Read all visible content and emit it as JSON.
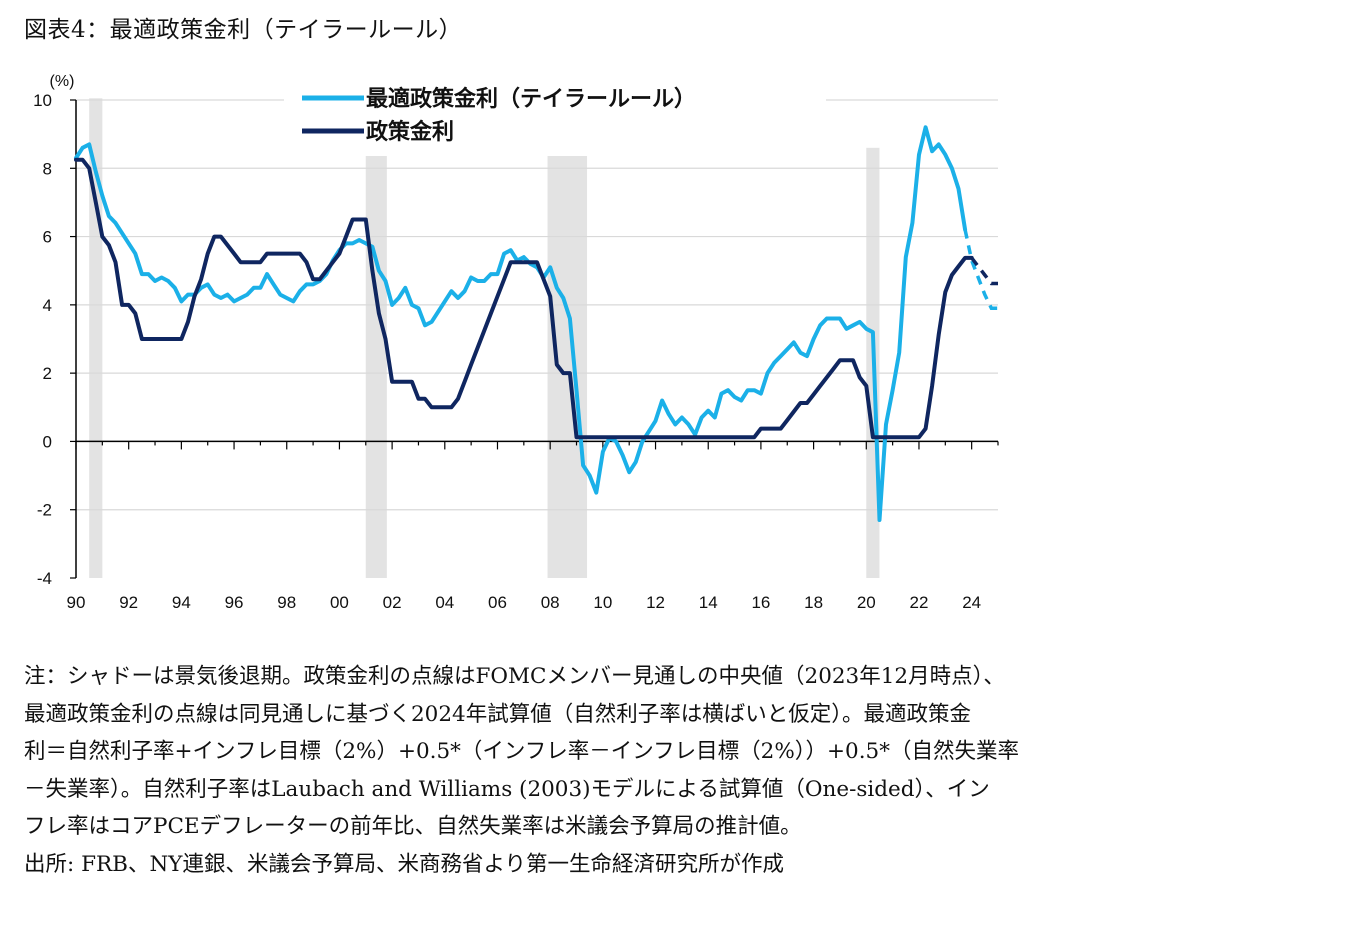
{
  "title": "図表4：最適政策金利（テイラールール）",
  "notes": {
    "lines": [
      "注：シャドーは景気後退期。政策金利の点線はFOMCメンバー見通しの中央値（2023年12月時点）、",
      "最適政策金利の点線は同見通しに基づく2024年試算値（自然利子率は横ばいと仮定）。最適政策金",
      "利＝自然利子率+インフレ目標（2%）+0.5*（インフレ率－インフレ目標（2%））+0.5*（自然失業率",
      "－失業率）。自然利子率はLaubach and Williams (2003)モデルによる試算値（One-sided）、イン",
      "フレ率はコアPCEデフレーターの前年比、自然失業率は米議会予算局の推計値。"
    ],
    "source": "出所: FRB、NY連銀、米議会予算局、米商務省より第一生命経済研究所が作成"
  },
  "colors": {
    "taylor": "#1BB0E8",
    "policy": "#0F2660",
    "shade": "#E3E3E3",
    "grid": "#D9D9D9",
    "axis": "#000000"
  },
  "chart_data": {
    "type": "line",
    "title": "",
    "ylabel": "(%)",
    "xlabel": "",
    "ylim": [
      -4,
      10
    ],
    "xlim": [
      1990,
      2025
    ],
    "yticks": [
      -4,
      -2,
      0,
      2,
      4,
      6,
      8,
      10
    ],
    "yticklabels": [
      "-4",
      "-2",
      "0",
      "2",
      "4",
      "6",
      "8",
      "10"
    ],
    "xticks": [
      1990,
      1992,
      1994,
      1996,
      1998,
      2000,
      2002,
      2004,
      2006,
      2008,
      2010,
      2012,
      2014,
      2016,
      2018,
      2020,
      2022,
      2024
    ],
    "xticklabels": [
      "90",
      "92",
      "94",
      "96",
      "98",
      "00",
      "02",
      "04",
      "06",
      "08",
      "10",
      "12",
      "14",
      "16",
      "18",
      "20",
      "22",
      "24"
    ],
    "recessions": [
      [
        1990.5,
        1991.0
      ],
      [
        2001.0,
        2001.8
      ],
      [
        2007.9,
        2009.4
      ],
      [
        2020.0,
        2020.5
      ]
    ],
    "legend": {
      "position": "top-center",
      "entries": [
        "最適政策金利（テイラールール）",
        "政策金利"
      ]
    },
    "series": [
      {
        "name": "最適政策金利（テイラールール）",
        "color": "#1BB0E8",
        "points": [
          [
            1990.0,
            8.3
          ],
          [
            1990.25,
            8.6
          ],
          [
            1990.5,
            8.7
          ],
          [
            1990.75,
            7.9
          ],
          [
            1991.0,
            7.2
          ],
          [
            1991.25,
            6.6
          ],
          [
            1991.5,
            6.4
          ],
          [
            1991.75,
            6.1
          ],
          [
            1992.0,
            5.8
          ],
          [
            1992.25,
            5.5
          ],
          [
            1992.5,
            4.9
          ],
          [
            1992.75,
            4.9
          ],
          [
            1993.0,
            4.7
          ],
          [
            1993.25,
            4.8
          ],
          [
            1993.5,
            4.7
          ],
          [
            1993.75,
            4.5
          ],
          [
            1994.0,
            4.1
          ],
          [
            1994.25,
            4.3
          ],
          [
            1994.5,
            4.3
          ],
          [
            1994.75,
            4.5
          ],
          [
            1995.0,
            4.6
          ],
          [
            1995.25,
            4.3
          ],
          [
            1995.5,
            4.2
          ],
          [
            1995.75,
            4.3
          ],
          [
            1996.0,
            4.1
          ],
          [
            1996.25,
            4.2
          ],
          [
            1996.5,
            4.3
          ],
          [
            1996.75,
            4.5
          ],
          [
            1997.0,
            4.5
          ],
          [
            1997.25,
            4.9
          ],
          [
            1997.5,
            4.6
          ],
          [
            1997.75,
            4.3
          ],
          [
            1998.0,
            4.2
          ],
          [
            1998.25,
            4.1
          ],
          [
            1998.5,
            4.4
          ],
          [
            1998.75,
            4.6
          ],
          [
            1999.0,
            4.6
          ],
          [
            1999.25,
            4.7
          ],
          [
            1999.5,
            4.9
          ],
          [
            1999.75,
            5.3
          ],
          [
            2000.0,
            5.6
          ],
          [
            2000.25,
            5.8
          ],
          [
            2000.5,
            5.8
          ],
          [
            2000.75,
            5.9
          ],
          [
            2001.0,
            5.8
          ],
          [
            2001.25,
            5.7
          ],
          [
            2001.5,
            5.0
          ],
          [
            2001.75,
            4.7
          ],
          [
            2002.0,
            4.0
          ],
          [
            2002.25,
            4.2
          ],
          [
            2002.5,
            4.5
          ],
          [
            2002.75,
            4.0
          ],
          [
            2003.0,
            3.9
          ],
          [
            2003.25,
            3.4
          ],
          [
            2003.5,
            3.5
          ],
          [
            2003.75,
            3.8
          ],
          [
            2004.0,
            4.1
          ],
          [
            2004.25,
            4.4
          ],
          [
            2004.5,
            4.2
          ],
          [
            2004.75,
            4.4
          ],
          [
            2005.0,
            4.8
          ],
          [
            2005.25,
            4.7
          ],
          [
            2005.5,
            4.7
          ],
          [
            2005.75,
            4.9
          ],
          [
            2006.0,
            4.9
          ],
          [
            2006.25,
            5.5
          ],
          [
            2006.5,
            5.6
          ],
          [
            2006.75,
            5.3
          ],
          [
            2007.0,
            5.4
          ],
          [
            2007.25,
            5.2
          ],
          [
            2007.5,
            5.1
          ],
          [
            2007.75,
            4.8
          ],
          [
            2008.0,
            5.1
          ],
          [
            2008.25,
            4.5
          ],
          [
            2008.5,
            4.2
          ],
          [
            2008.75,
            3.6
          ],
          [
            2009.0,
            1.5
          ],
          [
            2009.25,
            -0.7
          ],
          [
            2009.5,
            -1.0
          ],
          [
            2009.75,
            -1.5
          ],
          [
            2010.0,
            -0.3
          ],
          [
            2010.25,
            0.1
          ],
          [
            2010.5,
            0.0
          ],
          [
            2010.75,
            -0.4
          ],
          [
            2011.0,
            -0.9
          ],
          [
            2011.25,
            -0.6
          ],
          [
            2011.5,
            0.0
          ],
          [
            2011.75,
            0.3
          ],
          [
            2012.0,
            0.6
          ],
          [
            2012.25,
            1.2
          ],
          [
            2012.5,
            0.8
          ],
          [
            2012.75,
            0.5
          ],
          [
            2013.0,
            0.7
          ],
          [
            2013.25,
            0.5
          ],
          [
            2013.5,
            0.2
          ],
          [
            2013.75,
            0.7
          ],
          [
            2014.0,
            0.9
          ],
          [
            2014.25,
            0.7
          ],
          [
            2014.5,
            1.4
          ],
          [
            2014.75,
            1.5
          ],
          [
            2015.0,
            1.3
          ],
          [
            2015.25,
            1.2
          ],
          [
            2015.5,
            1.5
          ],
          [
            2015.75,
            1.5
          ],
          [
            2016.0,
            1.4
          ],
          [
            2016.25,
            2.0
          ],
          [
            2016.5,
            2.3
          ],
          [
            2016.75,
            2.5
          ],
          [
            2017.0,
            2.7
          ],
          [
            2017.25,
            2.9
          ],
          [
            2017.5,
            2.6
          ],
          [
            2017.75,
            2.5
          ],
          [
            2018.0,
            3.0
          ],
          [
            2018.25,
            3.4
          ],
          [
            2018.5,
            3.6
          ],
          [
            2018.75,
            3.6
          ],
          [
            2019.0,
            3.6
          ],
          [
            2019.25,
            3.3
          ],
          [
            2019.5,
            3.4
          ],
          [
            2019.75,
            3.5
          ],
          [
            2020.0,
            3.3
          ],
          [
            2020.25,
            3.2
          ],
          [
            2020.5,
            -2.3
          ],
          [
            2020.75,
            0.5
          ],
          [
            2021.0,
            1.5
          ],
          [
            2021.25,
            2.6
          ],
          [
            2021.5,
            5.4
          ],
          [
            2021.75,
            6.4
          ],
          [
            2022.0,
            8.4
          ],
          [
            2022.25,
            9.2
          ],
          [
            2022.5,
            8.5
          ],
          [
            2022.75,
            8.7
          ],
          [
            2023.0,
            8.4
          ],
          [
            2023.25,
            8.0
          ],
          [
            2023.5,
            7.4
          ],
          [
            2023.75,
            6.2
          ]
        ],
        "projection": [
          [
            2023.75,
            6.2
          ],
          [
            2024.0,
            5.3
          ],
          [
            2024.25,
            4.8
          ],
          [
            2024.5,
            4.3
          ],
          [
            2024.75,
            3.9
          ],
          [
            2025.0,
            3.9
          ]
        ]
      },
      {
        "name": "政策金利",
        "color": "#0F2660",
        "points": [
          [
            1990.0,
            8.25
          ],
          [
            1990.25,
            8.25
          ],
          [
            1990.5,
            8.0
          ],
          [
            1990.75,
            7.0
          ],
          [
            1991.0,
            6.0
          ],
          [
            1991.25,
            5.75
          ],
          [
            1991.5,
            5.25
          ],
          [
            1991.75,
            4.0
          ],
          [
            1992.0,
            4.0
          ],
          [
            1992.25,
            3.75
          ],
          [
            1992.5,
            3.0
          ],
          [
            1994.0,
            3.0
          ],
          [
            1994.25,
            3.5
          ],
          [
            1994.5,
            4.25
          ],
          [
            1994.75,
            4.75
          ],
          [
            1995.0,
            5.5
          ],
          [
            1995.25,
            6.0
          ],
          [
            1995.5,
            6.0
          ],
          [
            1995.75,
            5.75
          ],
          [
            1996.0,
            5.5
          ],
          [
            1996.25,
            5.25
          ],
          [
            1997.0,
            5.25
          ],
          [
            1997.25,
            5.5
          ],
          [
            1998.5,
            5.5
          ],
          [
            1998.75,
            5.25
          ],
          [
            1999.0,
            4.75
          ],
          [
            1999.25,
            4.75
          ],
          [
            1999.5,
            5.0
          ],
          [
            1999.75,
            5.25
          ],
          [
            2000.0,
            5.5
          ],
          [
            2000.25,
            6.0
          ],
          [
            2000.5,
            6.5
          ],
          [
            2001.0,
            6.5
          ],
          [
            2001.25,
            5.0
          ],
          [
            2001.5,
            3.75
          ],
          [
            2001.75,
            3.0
          ],
          [
            2002.0,
            1.75
          ],
          [
            2002.75,
            1.75
          ],
          [
            2003.0,
            1.25
          ],
          [
            2003.25,
            1.25
          ],
          [
            2003.5,
            1.0
          ],
          [
            2004.25,
            1.0
          ],
          [
            2004.5,
            1.25
          ],
          [
            2004.75,
            1.75
          ],
          [
            2005.0,
            2.25
          ],
          [
            2005.25,
            2.75
          ],
          [
            2005.5,
            3.25
          ],
          [
            2005.75,
            3.75
          ],
          [
            2006.0,
            4.25
          ],
          [
            2006.25,
            4.75
          ],
          [
            2006.5,
            5.25
          ],
          [
            2007.5,
            5.25
          ],
          [
            2007.75,
            4.75
          ],
          [
            2008.0,
            4.25
          ],
          [
            2008.25,
            2.25
          ],
          [
            2008.5,
            2.0
          ],
          [
            2008.75,
            2.0
          ],
          [
            2009.0,
            0.125
          ],
          [
            2015.75,
            0.125
          ],
          [
            2016.0,
            0.375
          ],
          [
            2016.75,
            0.375
          ],
          [
            2017.0,
            0.625
          ],
          [
            2017.25,
            0.875
          ],
          [
            2017.5,
            1.125
          ],
          [
            2017.75,
            1.125
          ],
          [
            2018.0,
            1.375
          ],
          [
            2018.25,
            1.625
          ],
          [
            2018.5,
            1.875
          ],
          [
            2018.75,
            2.125
          ],
          [
            2019.0,
            2.375
          ],
          [
            2019.5,
            2.375
          ],
          [
            2019.75,
            1.875
          ],
          [
            2020.0,
            1.625
          ],
          [
            2020.25,
            0.125
          ],
          [
            2022.0,
            0.125
          ],
          [
            2022.25,
            0.375
          ],
          [
            2022.5,
            1.625
          ],
          [
            2022.75,
            3.125
          ],
          [
            2023.0,
            4.375
          ],
          [
            2023.25,
            4.875
          ],
          [
            2023.5,
            5.125
          ],
          [
            2023.75,
            5.375
          ],
          [
            2024.0,
            5.375
          ]
        ],
        "projection": [
          [
            2024.0,
            5.375
          ],
          [
            2024.25,
            5.125
          ],
          [
            2024.5,
            4.875
          ],
          [
            2024.75,
            4.625
          ],
          [
            2025.0,
            4.625
          ]
        ]
      }
    ]
  }
}
